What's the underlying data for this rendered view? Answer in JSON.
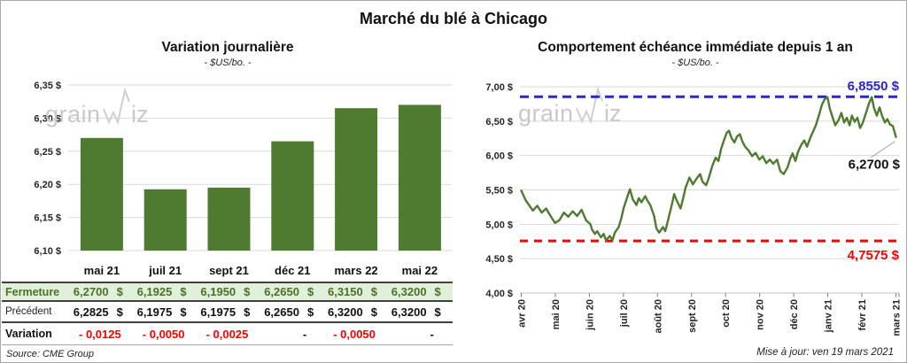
{
  "title": "Marché du blé à Chicago",
  "watermark": {
    "prefix": "grain",
    "suffix": "iz"
  },
  "updated": "Mise à jour: ven 19 mars 2021",
  "source": "Source: CME Group",
  "colors": {
    "green": "#4e7b2f",
    "row_green_bg": "#e2efda",
    "row_green_text": "#4a7228",
    "blue": "#2727cc",
    "red": "#fe0000",
    "grid": "#d9d9d9",
    "axis_text": "#262626",
    "watermark_gray": "#c9c9c9"
  },
  "table": {
    "columns": [
      "mai 21",
      "juil 21",
      "sept 21",
      "déc 21",
      "mars 22",
      "mai 22"
    ],
    "rows": [
      {
        "id": "fermeture",
        "label": "Fermeture",
        "currency": "$",
        "values": [
          "6,2700",
          "6,1925",
          "6,1950",
          "6,2650",
          "6,3150",
          "6,3200"
        ]
      },
      {
        "id": "precedent",
        "label": "Précédent",
        "currency": "$",
        "values": [
          "6,2825",
          "6,1975",
          "6,1975",
          "6,2650",
          "6,3200",
          "6,3200"
        ]
      },
      {
        "id": "variation",
        "label": "Variation",
        "values": [
          "- 0,0125",
          "- 0,0050",
          "- 0,0025",
          "-",
          "- 0,0050",
          "-"
        ]
      }
    ]
  },
  "chart_data": [
    {
      "type": "bar",
      "title": "Variation journalière",
      "subtitle": "- $US/bo. -",
      "categories": [
        "mai 21",
        "juil 21",
        "sept 21",
        "déc 21",
        "mars 22",
        "mai 22"
      ],
      "values": [
        6.27,
        6.1925,
        6.195,
        6.265,
        6.315,
        6.32
      ],
      "ylim": [
        6.1,
        6.35
      ],
      "ytick_labels": [
        "6,35 $",
        "6,30 $",
        "6,25 $",
        "6,20 $",
        "6,15 $",
        "6,10 $"
      ],
      "grid": true,
      "bar_color": "#4e7b2f"
    },
    {
      "type": "line",
      "title": "Comportement échéance immédiate depuis 1 an",
      "subtitle": "- $US/bo. -",
      "x_tick_labels": [
        "avr 20",
        "mai 20",
        "juin 20",
        "juil 20",
        "août 20",
        "sept 20",
        "oct 20",
        "nov 20",
        "déc 20",
        "janv 21",
        "févr 21",
        "mars 21"
      ],
      "ylim": [
        4.0,
        7.0
      ],
      "ytick_labels": [
        "7,00 $",
        "6,50 $",
        "6,00 $",
        "5,50 $",
        "5,00 $",
        "4,50 $",
        "4,00 $"
      ],
      "grid": true,
      "line_color": "#4e7b2f",
      "high_line": {
        "value": 6.855,
        "label": "6,8550 $",
        "color": "#2727cc"
      },
      "low_line": {
        "value": 4.7575,
        "label": "4,7575 $",
        "color": "#fe0000"
      },
      "last_label": {
        "value": 6.27,
        "label": "6,2700 $"
      },
      "series": [
        {
          "name": "échéance immédiate",
          "points": [
            [
              0,
              5.49
            ],
            [
              0.13,
              5.35
            ],
            [
              0.34,
              5.2
            ],
            [
              0.47,
              5.27
            ],
            [
              0.6,
              5.17
            ],
            [
              0.73,
              5.23
            ],
            [
              0.86,
              5.12
            ],
            [
              0.99,
              5.02
            ],
            [
              1.12,
              5.06
            ],
            [
              1.25,
              5.17
            ],
            [
              1.38,
              5.11
            ],
            [
              1.51,
              5.19
            ],
            [
              1.64,
              5.12
            ],
            [
              1.77,
              5.21
            ],
            [
              1.9,
              5.06
            ],
            [
              2.03,
              5.0
            ],
            [
              2.08,
              4.92
            ],
            [
              2.16,
              4.86
            ],
            [
              2.23,
              4.9
            ],
            [
              2.34,
              4.81
            ],
            [
              2.42,
              4.86
            ],
            [
              2.49,
              4.77
            ],
            [
              2.6,
              4.83
            ],
            [
              2.68,
              4.77
            ],
            [
              2.75,
              4.88
            ],
            [
              2.86,
              4.96
            ],
            [
              2.94,
              5.09
            ],
            [
              3.01,
              5.24
            ],
            [
              3.12,
              5.41
            ],
            [
              3.19,
              5.51
            ],
            [
              3.27,
              5.37
            ],
            [
              3.38,
              5.28
            ],
            [
              3.45,
              5.38
            ],
            [
              3.53,
              5.32
            ],
            [
              3.64,
              5.41
            ],
            [
              3.71,
              5.34
            ],
            [
              3.79,
              5.28
            ],
            [
              3.9,
              5.12
            ],
            [
              3.97,
              4.94
            ],
            [
              4.05,
              4.88
            ],
            [
              4.16,
              4.96
            ],
            [
              4.23,
              4.9
            ],
            [
              4.31,
              5.06
            ],
            [
              4.42,
              5.28
            ],
            [
              4.49,
              5.44
            ],
            [
              4.57,
              5.34
            ],
            [
              4.68,
              5.23
            ],
            [
              4.75,
              5.37
            ],
            [
              4.83,
              5.54
            ],
            [
              4.94,
              5.68
            ],
            [
              5.04,
              5.58
            ],
            [
              5.14,
              5.66
            ],
            [
              5.25,
              5.73
            ],
            [
              5.32,
              5.62
            ],
            [
              5.43,
              5.57
            ],
            [
              5.51,
              5.68
            ],
            [
              5.61,
              5.85
            ],
            [
              5.71,
              5.97
            ],
            [
              5.79,
              5.92
            ],
            [
              5.87,
              6.1
            ],
            [
              5.95,
              6.22
            ],
            [
              6.03,
              6.33
            ],
            [
              6.1,
              6.36
            ],
            [
              6.18,
              6.25
            ],
            [
              6.26,
              6.19
            ],
            [
              6.34,
              6.28
            ],
            [
              6.42,
              6.31
            ],
            [
              6.49,
              6.21
            ],
            [
              6.57,
              6.13
            ],
            [
              6.68,
              6.07
            ],
            [
              6.78,
              5.99
            ],
            [
              6.88,
              6.04
            ],
            [
              6.99,
              5.94
            ],
            [
              7.09,
              5.99
            ],
            [
              7.19,
              5.89
            ],
            [
              7.3,
              5.94
            ],
            [
              7.4,
              5.88
            ],
            [
              7.51,
              5.94
            ],
            [
              7.61,
              5.77
            ],
            [
              7.71,
              5.73
            ],
            [
              7.82,
              5.83
            ],
            [
              7.9,
              5.96
            ],
            [
              7.97,
              6.03
            ],
            [
              8.05,
              5.92
            ],
            [
              8.13,
              6.06
            ],
            [
              8.23,
              6.16
            ],
            [
              8.31,
              6.22
            ],
            [
              8.39,
              6.13
            ],
            [
              8.49,
              6.26
            ],
            [
              8.57,
              6.35
            ],
            [
              8.65,
              6.44
            ],
            [
              8.75,
              6.6
            ],
            [
              8.83,
              6.74
            ],
            [
              8.91,
              6.82
            ],
            [
              8.99,
              6.85
            ],
            [
              9.06,
              6.68
            ],
            [
              9.14,
              6.56
            ],
            [
              9.22,
              6.44
            ],
            [
              9.32,
              6.52
            ],
            [
              9.4,
              6.62
            ],
            [
              9.48,
              6.48
            ],
            [
              9.56,
              6.55
            ],
            [
              9.64,
              6.44
            ],
            [
              9.71,
              6.58
            ],
            [
              9.79,
              6.49
            ],
            [
              9.87,
              6.55
            ],
            [
              9.95,
              6.4
            ],
            [
              10.03,
              6.48
            ],
            [
              10.13,
              6.63
            ],
            [
              10.21,
              6.76
            ],
            [
              10.29,
              6.85
            ],
            [
              10.36,
              6.69
            ],
            [
              10.44,
              6.58
            ],
            [
              10.52,
              6.7
            ],
            [
              10.6,
              6.57
            ],
            [
              10.68,
              6.48
            ],
            [
              10.75,
              6.53
            ],
            [
              10.83,
              6.45
            ],
            [
              10.91,
              6.43
            ],
            [
              11,
              6.27
            ]
          ]
        }
      ]
    }
  ]
}
